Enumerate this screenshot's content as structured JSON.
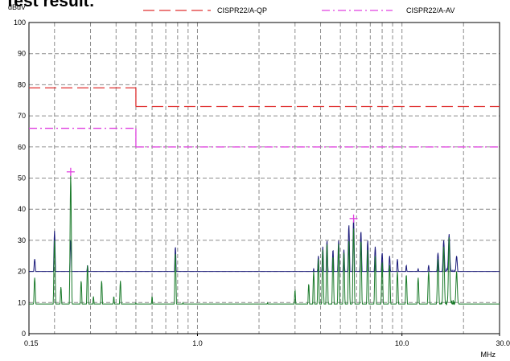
{
  "page": {
    "heading": "Test result:"
  },
  "chart_data": {
    "type": "line",
    "title": "",
    "ylabel": "dBuV",
    "xlabel": "MHz",
    "x_scale": "log",
    "xlim": [
      0.15,
      30.0
    ],
    "ylim": [
      0,
      100
    ],
    "grid": true,
    "y_ticks": [
      0,
      10,
      20,
      30,
      40,
      50,
      60,
      70,
      80,
      90,
      100
    ],
    "x_tick_labels": [
      {
        "value": 0.15,
        "label": "0.15"
      },
      {
        "value": 1.0,
        "label": "1.0"
      },
      {
        "value": 10.0,
        "label": "10.0"
      },
      {
        "value": 30.0,
        "label": "30.0"
      }
    ],
    "x_gridlines": [
      0.2,
      0.3,
      0.4,
      0.5,
      0.6,
      0.7,
      0.8,
      0.9,
      1.0,
      2.0,
      3.0,
      4.0,
      5.0,
      6.0,
      7.0,
      8.0,
      9.0,
      10.0,
      20.0
    ],
    "legend": [
      {
        "label": "CISPR22/A-QP",
        "color": "#e03030",
        "dash": "long-dash"
      },
      {
        "label": "CISPR22/A-AV",
        "color": "#e040e0",
        "dash": "dash-dot"
      }
    ],
    "limits": [
      {
        "name": "CISPR22/A-QP",
        "color": "#e03030",
        "segments": [
          [
            0.15,
            79,
            0.5,
            79
          ],
          [
            0.5,
            73,
            30.0,
            73
          ]
        ]
      },
      {
        "name": "CISPR22/A-AV",
        "color": "#e040e0",
        "segments": [
          [
            0.15,
            66,
            0.5,
            66
          ],
          [
            0.5,
            60,
            30.0,
            60
          ]
        ]
      }
    ],
    "series": [
      {
        "color": "#1a1a7a",
        "baseline": [
          [
            0.15,
            20
          ],
          [
            0.17,
            16
          ],
          [
            0.2,
            14
          ],
          [
            0.25,
            15
          ],
          [
            0.3,
            14.5
          ],
          [
            0.4,
            13
          ],
          [
            0.5,
            13
          ],
          [
            0.6,
            13.5
          ],
          [
            0.8,
            13.5
          ],
          [
            1.0,
            13
          ],
          [
            1.5,
            12.5
          ],
          [
            2.0,
            13
          ],
          [
            3.0,
            13.5
          ],
          [
            4.0,
            14
          ],
          [
            5.0,
            14.5
          ],
          [
            7.0,
            15
          ],
          [
            10.0,
            15.5
          ],
          [
            13.0,
            16
          ],
          [
            15.0,
            18
          ],
          [
            17.0,
            20
          ],
          [
            20.0,
            18
          ],
          [
            25.0,
            16.5
          ],
          [
            30.0,
            16
          ]
        ],
        "peaks": [
          [
            0.16,
            24
          ],
          [
            0.2,
            33
          ],
          [
            0.215,
            20
          ],
          [
            0.24,
            30
          ],
          [
            0.27,
            19
          ],
          [
            0.29,
            22
          ],
          [
            0.31,
            19
          ],
          [
            0.34,
            20
          ],
          [
            0.39,
            17
          ],
          [
            0.42,
            20
          ],
          [
            0.5,
            18
          ],
          [
            0.6,
            17
          ],
          [
            0.78,
            28
          ],
          [
            0.85,
            17
          ],
          [
            2.2,
            17
          ],
          [
            3.0,
            18
          ],
          [
            3.5,
            19
          ],
          [
            3.7,
            21
          ],
          [
            3.9,
            25
          ],
          [
            4.1,
            28
          ],
          [
            4.3,
            30
          ],
          [
            4.6,
            27
          ],
          [
            4.9,
            30
          ],
          [
            5.2,
            27
          ],
          [
            5.5,
            35
          ],
          [
            5.8,
            37
          ],
          [
            6.3,
            33
          ],
          [
            6.8,
            30
          ],
          [
            7.4,
            28
          ],
          [
            8.0,
            26
          ],
          [
            8.7,
            25
          ],
          [
            9.5,
            24
          ],
          [
            10.5,
            22
          ],
          [
            12.0,
            21
          ],
          [
            13.5,
            22
          ],
          [
            15.0,
            26
          ],
          [
            16.0,
            30
          ],
          [
            17.0,
            32
          ],
          [
            18.5,
            25
          ]
        ]
      },
      {
        "color": "#1a7a2a",
        "baseline": [
          [
            0.15,
            7
          ],
          [
            0.2,
            6
          ],
          [
            0.25,
            5
          ],
          [
            0.3,
            5
          ],
          [
            0.5,
            4.5
          ],
          [
            1.0,
            4
          ],
          [
            2.0,
            4
          ],
          [
            3.0,
            4.5
          ],
          [
            4.0,
            5
          ],
          [
            6.0,
            5.5
          ],
          [
            8.0,
            6
          ],
          [
            10.0,
            6
          ],
          [
            13.0,
            7
          ],
          [
            16.0,
            9
          ],
          [
            18.0,
            10
          ],
          [
            20.0,
            8
          ],
          [
            25.0,
            7
          ],
          [
            30.0,
            6.5
          ]
        ],
        "peaks": [
          [
            0.16,
            18
          ],
          [
            0.2,
            30
          ],
          [
            0.215,
            15
          ],
          [
            0.24,
            51
          ],
          [
            0.27,
            17
          ],
          [
            0.29,
            22
          ],
          [
            0.31,
            12
          ],
          [
            0.34,
            17
          ],
          [
            0.39,
            12
          ],
          [
            0.42,
            17
          ],
          [
            0.5,
            10
          ],
          [
            0.6,
            12
          ],
          [
            0.78,
            26
          ],
          [
            0.85,
            10
          ],
          [
            1.5,
            9
          ],
          [
            2.2,
            10
          ],
          [
            3.0,
            14
          ],
          [
            3.5,
            16
          ],
          [
            3.7,
            20
          ],
          [
            3.9,
            24
          ],
          [
            4.1,
            27
          ],
          [
            4.3,
            29
          ],
          [
            4.6,
            25
          ],
          [
            4.9,
            29
          ],
          [
            5.2,
            26
          ],
          [
            5.5,
            30
          ],
          [
            5.8,
            34
          ],
          [
            6.3,
            30
          ],
          [
            6.8,
            27
          ],
          [
            7.4,
            25
          ],
          [
            8.0,
            23
          ],
          [
            8.7,
            22
          ],
          [
            9.5,
            20
          ],
          [
            10.5,
            19
          ],
          [
            12.0,
            18
          ],
          [
            13.5,
            20
          ],
          [
            15.0,
            24
          ],
          [
            16.0,
            28
          ],
          [
            17.0,
            31
          ],
          [
            18.5,
            20
          ]
        ]
      }
    ],
    "markers": [
      {
        "x": 0.24,
        "y": 52,
        "color": "#e040e0"
      },
      {
        "x": 5.8,
        "y": 37,
        "color": "#e040e0"
      }
    ]
  }
}
